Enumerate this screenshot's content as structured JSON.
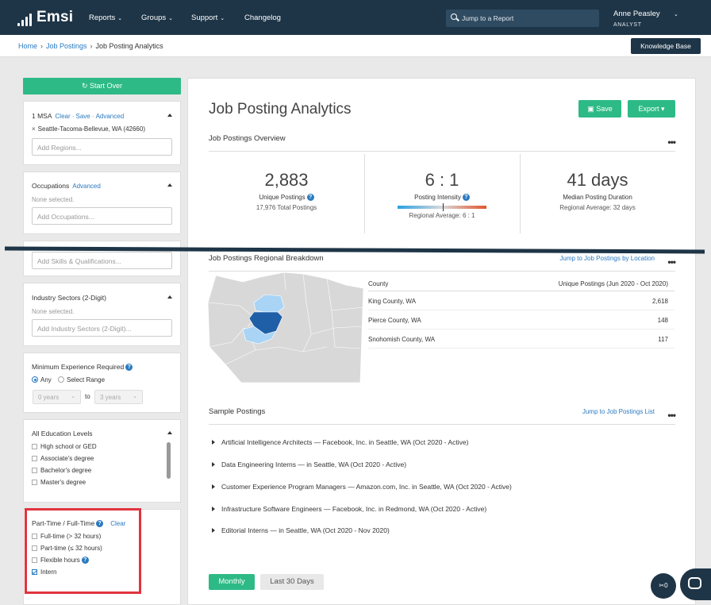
{
  "app": {
    "logo": "Emsi"
  },
  "nav": {
    "items": [
      {
        "label": "Reports",
        "chevron": true
      },
      {
        "label": "Groups",
        "chevron": true
      },
      {
        "label": "Support",
        "chevron": true
      },
      {
        "label": "Changelog",
        "chevron": false
      }
    ],
    "search_placeholder": "Jump to a Report"
  },
  "user": {
    "name": "Anne Peasley",
    "role": "ANALYST"
  },
  "breadcrumb": {
    "home": "Home",
    "postings": "Job Postings",
    "current": "Job Posting Analytics"
  },
  "knowledge_base": "Knowledge Base",
  "sidebar": {
    "start_over": "Start Over",
    "region": {
      "title": "1 MSA",
      "clear": "Clear",
      "save": "Save",
      "advanced": "Advanced",
      "chip": "Seattle-Tacoma-Bellevue, WA (42660)",
      "placeholder": "Add Regions..."
    },
    "occupations": {
      "title": "Occupations",
      "advanced": "Advanced",
      "none": "None selected.",
      "placeholder": "Add Occupations..."
    },
    "skills": {
      "placeholder": "Add Skills & Qualifications..."
    },
    "industry": {
      "title": "Industry Sectors (2-Digit)",
      "none": "None selected.",
      "placeholder": "Add Industry Sectors (2-Digit)..."
    },
    "experience": {
      "title": "Minimum Experience Required",
      "any": "Any",
      "range": "Select Range",
      "from": "0 years",
      "to_label": "to",
      "to": "3 years"
    },
    "education": {
      "title": "All Education Levels",
      "options": [
        "High school or GED",
        "Associate's degree",
        "Bachelor's degree",
        "Master's degree"
      ]
    },
    "parttime": {
      "title": "Part-Time / Full-Time",
      "clear": "Clear",
      "options": [
        {
          "label": "Full-time (> 32 hours)",
          "checked": false,
          "help": false
        },
        {
          "label": "Part-time (≤ 32 hours)",
          "checked": false,
          "help": false
        },
        {
          "label": "Flexible hours",
          "checked": false,
          "help": true
        },
        {
          "label": "Intern",
          "checked": true,
          "help": false
        }
      ]
    }
  },
  "main": {
    "title": "Job Posting Analytics",
    "save": "Save",
    "export": "Export",
    "overview": {
      "title": "Job Postings Overview",
      "unique": {
        "value": "2,883",
        "label": "Unique Postings",
        "sub": "17,976 Total Postings"
      },
      "intensity": {
        "value": "6 : 1",
        "label": "Posting Intensity",
        "sub": "Regional Average: 6 : 1"
      },
      "duration": {
        "value": "41 days",
        "label": "Median Posting Duration",
        "sub": "Regional Average: 32 days"
      }
    },
    "breakdown": {
      "title": "Job Postings Regional Breakdown",
      "link": "Jump to Job Postings by Location",
      "col1": "County",
      "col2": "Unique Postings (Jun 2020 - Oct 2020)",
      "rows": [
        {
          "county": "King County, WA",
          "value": "2,618"
        },
        {
          "county": "Pierce County, WA",
          "value": "148"
        },
        {
          "county": "Snohomish County, WA",
          "value": "117"
        }
      ]
    },
    "samples": {
      "title": "Sample Postings",
      "link": "Jump to Job Postings List",
      "items": [
        "Artificial Intelligence Architects — Facebook, Inc. in Seattle, WA (Oct 2020 - Active)",
        "Data Engineering Interns — in Seattle, WA (Oct 2020 - Active)",
        "Customer Experience Program Managers — Amazon.com, Inc. in Seattle, WA (Oct 2020 - Active)",
        "Infrastructure Software Engineers — Facebook, Inc. in Redmond, WA (Oct 2020 - Active)",
        "Editorial Interns — in Seattle, WA (Oct 2020 - Nov 2020)"
      ]
    },
    "tabs": {
      "monthly": "Monthly",
      "last30": "Last 30 Days"
    }
  },
  "fab": {
    "label": "0"
  },
  "colors": {
    "navy": "#1e3547",
    "green": "#2dba86",
    "link": "#2a7ac0",
    "highlight": "#e0343e",
    "king": "#1f5fa8",
    "neighbor": "#a9d4f5"
  }
}
